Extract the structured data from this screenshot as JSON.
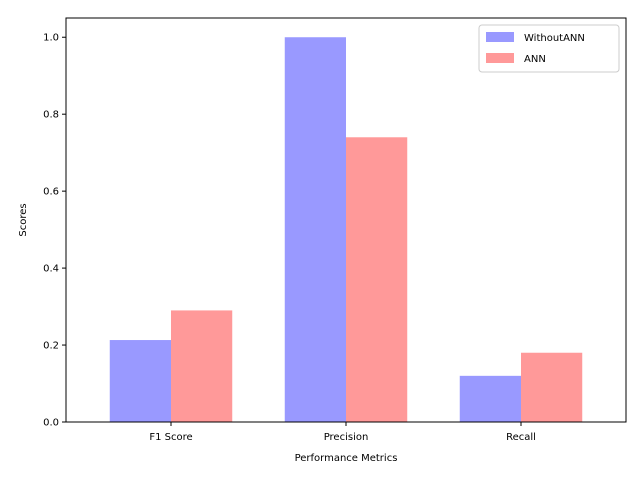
{
  "chart_data": {
    "type": "bar",
    "title": "",
    "xlabel": "Performance Metrics",
    "ylabel": "Scores",
    "categories": [
      "F1 Score",
      "Precision",
      "Recall"
    ],
    "series": [
      {
        "name": "WithoutANN",
        "values": [
          0.213,
          1.0,
          0.12
        ],
        "color": "#9999ff"
      },
      {
        "name": "ANN",
        "values": [
          0.29,
          0.74,
          0.18
        ],
        "color": "#ff9999"
      }
    ],
    "ylim": [
      0,
      1.05
    ],
    "yticks": [
      "0.0",
      "0.2",
      "0.4",
      "0.6",
      "0.8",
      "1.0"
    ],
    "grid": false,
    "legend_position": "upper right"
  }
}
